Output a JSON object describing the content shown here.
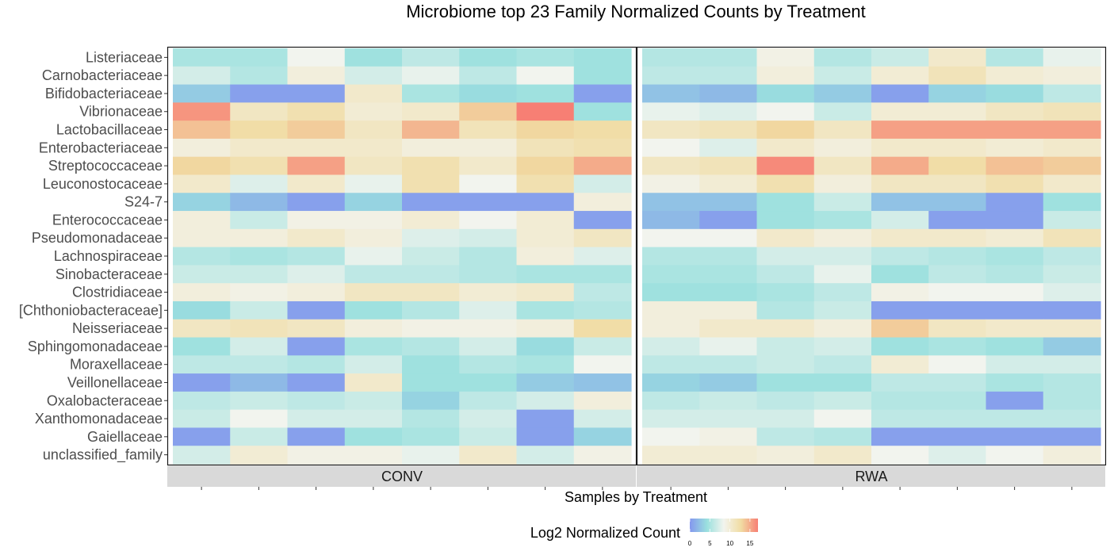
{
  "chart_data": {
    "type": "heatmap",
    "title": "Microbiome top 23 Family Normalized Counts by Treatment",
    "xlabel": "Samples by Treatment",
    "ylabel": "",
    "legend": {
      "title": "Log2 Normalized Count",
      "ticks": [
        "0",
        "5",
        "10",
        "15"
      ],
      "range": [
        0,
        17
      ],
      "colors": [
        "#8497ee",
        "#9ae0de",
        "#f2f4ee",
        "#f1dca3",
        "#f77f74"
      ],
      "placement": "bottom"
    },
    "rows": [
      "Listeriaceae",
      "Carnobacteriaceae",
      "Bifidobacteriaceae",
      "Vibrionaceae",
      "Lactobacillaceae",
      "Enterobacteriaceae",
      "Streptococcaceae",
      "Leuconostocaceae",
      "S24-7",
      "Enterococcaceae",
      "Pseudomonadaceae",
      "Lachnospiraceae",
      "Sinobacteraceae",
      "Clostridiaceae",
      "[Chthoniobacteraceae]",
      "Neisseriaceae",
      "Sphingomonadaceae",
      "Moraxellaceae",
      "Veillonellaceae",
      "Oxalobacteraceae",
      "Xanthomonadaceae",
      "Gaiellaceae",
      "unclassified_family"
    ],
    "facets": [
      {
        "name": "CONV",
        "n_samples": 8,
        "values": [
          [
            5,
            5,
            8.5,
            4.5,
            6,
            4.5,
            5,
            4.5
          ],
          [
            7,
            5.5,
            9.5,
            7,
            8,
            6,
            8.5,
            4.5
          ],
          [
            3,
            0.5,
            0.5,
            10.5,
            5,
            4,
            4.5,
            0.5
          ],
          [
            16,
            11,
            12,
            10,
            10.5,
            13.5,
            17,
            4.5
          ],
          [
            14,
            12.5,
            13.5,
            11,
            14.5,
            11.5,
            13,
            12.5
          ],
          [
            9.5,
            10.5,
            10.5,
            10.5,
            9.5,
            9.5,
            11.5,
            12
          ],
          [
            13,
            12,
            15.5,
            11,
            12,
            10.5,
            13,
            15
          ],
          [
            10.5,
            7.5,
            10.5,
            8,
            12,
            8.5,
            12,
            7
          ],
          [
            3.5,
            2,
            0.5,
            3.5,
            0.5,
            0.5,
            0.5,
            9.5
          ],
          [
            9.5,
            6.5,
            9,
            9,
            10,
            8.5,
            10,
            0.5
          ],
          [
            9.5,
            9.5,
            10.5,
            9.5,
            7.5,
            7,
            10,
            11
          ],
          [
            5.5,
            5,
            5.5,
            8,
            6.5,
            5.5,
            9.5,
            7.5
          ],
          [
            6.5,
            6.5,
            7.5,
            6,
            6,
            5.5,
            5,
            5
          ],
          [
            9.5,
            9,
            9.5,
            11,
            11,
            10,
            10.5,
            6
          ],
          [
            4,
            6.5,
            0.5,
            4.5,
            5.5,
            7.5,
            5,
            5.5
          ],
          [
            11,
            11.5,
            11,
            9.5,
            9,
            9,
            9.5,
            12.5
          ],
          [
            4.5,
            7,
            0.5,
            5,
            5.5,
            7,
            4,
            6.5
          ],
          [
            6,
            6,
            5.5,
            7,
            4.5,
            5.5,
            5,
            8.5
          ],
          [
            0.5,
            2,
            0.5,
            10.5,
            4.5,
            4.5,
            3,
            2.5
          ],
          [
            6,
            6.5,
            6,
            6.5,
            3.5,
            6,
            7,
            9.5
          ],
          [
            6.5,
            8.5,
            7,
            7,
            5.5,
            7,
            0.5,
            7
          ],
          [
            0.5,
            6.5,
            0.5,
            4.5,
            5,
            6.5,
            0.5,
            3.5
          ],
          [
            7,
            10,
            9,
            9,
            8,
            10.5,
            7,
            9
          ]
        ]
      },
      {
        "name": "RWA",
        "n_samples": 8,
        "values": [
          [
            5.5,
            5.5,
            9,
            5.5,
            6.5,
            10.5,
            5.5,
            8
          ],
          [
            6,
            6,
            9.5,
            6.5,
            10,
            11.5,
            10,
            9.5
          ],
          [
            2.5,
            2,
            4,
            3,
            0.5,
            3.5,
            4,
            6
          ],
          [
            8,
            7.5,
            8.5,
            6.5,
            10,
            10,
            11,
            11.5
          ],
          [
            11,
            11.5,
            13,
            11,
            15.5,
            15.5,
            15.5,
            15.5
          ],
          [
            8.5,
            7.5,
            10.5,
            9.5,
            10.5,
            10.5,
            10,
            10.5
          ],
          [
            11,
            11.5,
            16.5,
            11,
            15,
            12.5,
            14,
            13.5
          ],
          [
            9,
            10,
            12,
            9.5,
            11,
            11,
            12,
            10.5
          ],
          [
            2.5,
            2.5,
            4.5,
            6.5,
            2.5,
            2.5,
            0.5,
            4.5
          ],
          [
            2,
            0.5,
            4.5,
            5,
            7,
            0.5,
            0.5,
            6.5
          ],
          [
            8.5,
            8.5,
            10.5,
            9.5,
            10.5,
            10.5,
            10,
            11.5
          ],
          [
            5.5,
            5.5,
            7,
            7,
            6,
            5.5,
            5,
            6
          ],
          [
            5,
            5,
            6,
            8,
            4.5,
            6,
            5.5,
            6.5
          ],
          [
            4.5,
            4.5,
            5,
            6,
            9,
            8.5,
            8.5,
            7.5
          ],
          [
            9.5,
            9.5,
            5.5,
            6.5,
            0.5,
            0.5,
            0.5,
            0.5
          ],
          [
            9.5,
            10.5,
            10.5,
            9.5,
            13.5,
            11,
            10.5,
            10.5
          ],
          [
            7,
            8,
            6.5,
            7,
            4.5,
            5,
            4.5,
            3
          ],
          [
            6,
            6,
            6.5,
            6,
            10,
            8.5,
            7,
            7
          ],
          [
            3.5,
            3,
            4.5,
            4.5,
            6,
            6,
            5,
            5.5
          ],
          [
            6,
            6.5,
            6,
            6.5,
            5.5,
            5.5,
            0.5,
            5.5
          ],
          [
            7,
            7,
            7,
            8.5,
            6,
            6,
            6,
            6
          ],
          [
            8.5,
            9,
            6,
            5.5,
            0.5,
            0.5,
            0.5,
            0.5
          ],
          [
            10,
            10,
            9.5,
            10.5,
            8.5,
            7.5,
            8.5,
            9.5
          ]
        ]
      }
    ]
  }
}
